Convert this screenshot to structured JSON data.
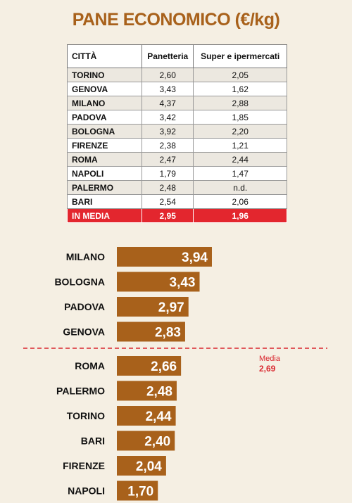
{
  "title": "PANE ECONOMICO (€/kg)",
  "table": {
    "headers": [
      "CITTÀ",
      "Panetteria",
      "Super e ipermercati"
    ],
    "rows": [
      [
        "TORINO",
        "2,60",
        "2,05"
      ],
      [
        "GENOVA",
        "3,43",
        "1,62"
      ],
      [
        "MILANO",
        "4,37",
        "2,88"
      ],
      [
        "PADOVA",
        "3,42",
        "1,85"
      ],
      [
        "BOLOGNA",
        "3,92",
        "2,20"
      ],
      [
        "FIRENZE",
        "2,38",
        "1,21"
      ],
      [
        "ROMA",
        "2,47",
        "2,44"
      ],
      [
        "NAPOLI",
        "1,79",
        "1,47"
      ],
      [
        "PALERMO",
        "2,48",
        "n.d."
      ],
      [
        "BARI",
        "2,54",
        "2,06"
      ]
    ],
    "average_row": [
      "IN MEDIA",
      "2,95",
      "1,96"
    ]
  },
  "chart_data": {
    "type": "bar",
    "orientation": "horizontal",
    "categories": [
      "MILANO",
      "BOLOGNA",
      "PADOVA",
      "GENOVA",
      "ROMA",
      "PALERMO",
      "TORINO",
      "BARI",
      "FIRENZE",
      "NAPOLI"
    ],
    "values": [
      3.94,
      3.43,
      2.97,
      2.83,
      2.66,
      2.48,
      2.44,
      2.4,
      2.04,
      1.7
    ],
    "value_labels": [
      "3,94",
      "3,43",
      "2,97",
      "2,83",
      "2,66",
      "2,48",
      "2,44",
      "2,40",
      "2,04",
      "1,70"
    ],
    "bar_color": "#a8611b",
    "reference_line": {
      "label": "Media",
      "value": 2.69,
      "value_label": "2,69",
      "color": "#d9262e",
      "style": "dashed"
    },
    "grid": false
  },
  "colors": {
    "background": "#f5efe3",
    "title": "#a8611b",
    "average_row": "#e3262e",
    "table_shade": "#ece8e0"
  }
}
